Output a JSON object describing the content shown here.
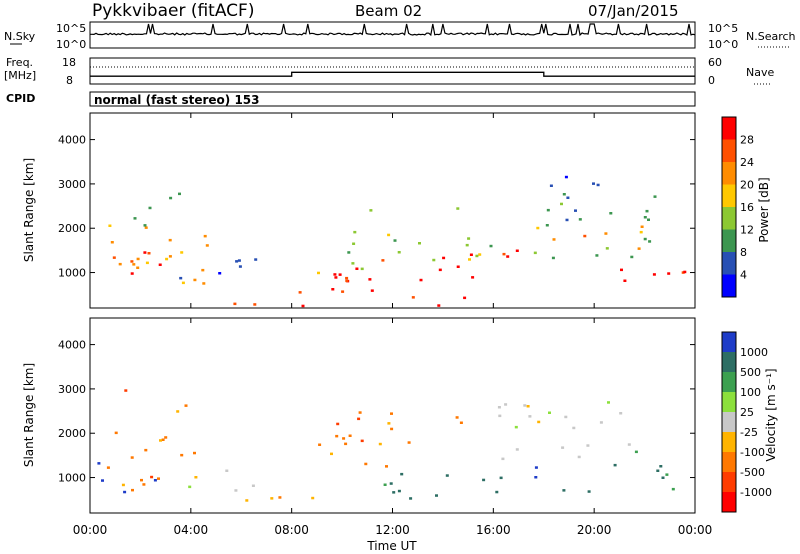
{
  "header": {
    "station": "Pykkvibaer (fitACF)",
    "beam": "Beam 02",
    "date": "07/Jan/2015"
  },
  "panels": {
    "nsky": {
      "left_label": "N.Sky",
      "right_label": "N.Search",
      "left_ticks": [
        "10^5",
        "10^0"
      ],
      "right_ticks": [
        "10^5",
        "10^0"
      ]
    },
    "freq": {
      "left_label_1": "Freq.",
      "left_label_2": "[MHz]",
      "right_label": "Nave",
      "left_ticks": [
        "18",
        "8"
      ],
      "right_ticks": [
        "60",
        "0"
      ],
      "steps": [
        {
          "start_hour": 0,
          "end_hour": 8,
          "nave": 18
        },
        {
          "start_hour": 8,
          "end_hour": 18,
          "nave": 27
        },
        {
          "start_hour": 18,
          "end_hour": 24,
          "nave": 18
        }
      ]
    },
    "cpid": {
      "label": "CPID",
      "text": "normal (fast stereo) 153"
    }
  },
  "chart_data": [
    {
      "type": "heatmap",
      "name": "power",
      "ylabel": "Slant Range [km]",
      "xlabel": "",
      "ylim": [
        200,
        4600
      ],
      "xlim_hours": [
        0,
        24
      ],
      "yticks": [
        "4000",
        "3000",
        "2000",
        "1000"
      ],
      "colorbar": {
        "label": "Power [dB]",
        "ticks": [
          "28",
          "24",
          "20",
          "16",
          "12",
          "8",
          "4"
        ],
        "colors": [
          "#ff0000",
          "#ff5000",
          "#ff8c00",
          "#ffc800",
          "#8cc832",
          "#3c9650",
          "#2850b4",
          "#0000ff"
        ]
      },
      "blobs": [
        {
          "t0": 0.2,
          "t1": 4.8,
          "r0": 700,
          "r1": 2200,
          "c": 2,
          "d": 0.55
        },
        {
          "t0": 0.5,
          "t1": 3.5,
          "r0": 850,
          "r1": 1500,
          "c": 0,
          "d": 0.6
        },
        {
          "t0": 3.5,
          "t1": 6.8,
          "r0": 900,
          "r1": 1400,
          "c": 6,
          "d": 0.7
        },
        {
          "t0": 5.0,
          "t1": 8.0,
          "r0": 300,
          "r1": 500,
          "c": 1,
          "d": 0.6
        },
        {
          "t0": 8.0,
          "t1": 9.0,
          "r0": 200,
          "r1": 650,
          "c": 0,
          "d": 0.7
        },
        {
          "t0": 9.5,
          "t1": 15.5,
          "r0": 250,
          "r1": 1500,
          "c": 0,
          "d": 0.55
        },
        {
          "t0": 9.0,
          "t1": 16.0,
          "r0": 1000,
          "r1": 2600,
          "c": 4,
          "d": 0.35
        },
        {
          "t0": 14.5,
          "t1": 17.0,
          "r0": 1100,
          "r1": 1600,
          "c": 0,
          "d": 0.6
        },
        {
          "t0": 17.5,
          "t1": 22.5,
          "r0": 1300,
          "r1": 2800,
          "c": 5,
          "d": 0.55
        },
        {
          "t0": 17.5,
          "t1": 22.0,
          "r0": 1500,
          "r1": 2200,
          "c": 2,
          "d": 0.45
        },
        {
          "t0": 18.0,
          "t1": 22.0,
          "r0": 2600,
          "r1": 3200,
          "c": 6,
          "d": 0.35
        },
        {
          "t0": 21.0,
          "t1": 24.0,
          "r0": 700,
          "r1": 1400,
          "c": 0,
          "d": 0.6
        },
        {
          "t0": 0.5,
          "t1": 4.0,
          "r0": 2000,
          "r1": 3200,
          "c": 5,
          "d": 0.25
        }
      ]
    },
    {
      "type": "heatmap",
      "name": "velocity",
      "ylabel": "Slant Range [km]",
      "xlabel": "Time UT",
      "ylim": [
        200,
        4600
      ],
      "xlim_hours": [
        0,
        24
      ],
      "yticks": [
        "4000",
        "3000",
        "2000",
        "1000"
      ],
      "xticks": [
        "00:00",
        "04:00",
        "08:00",
        "12:00",
        "16:00",
        "20:00",
        "00:00"
      ],
      "colorbar": {
        "label": "Velocity [m s⁻¹]",
        "ticks": [
          "1000",
          "500",
          "100",
          "25",
          "-25",
          "-100",
          "-500",
          "-1000"
        ],
        "colors": [
          "#1e3cc8",
          "#2d6e64",
          "#3ca050",
          "#8ce03c",
          "#c8c8c8",
          "#ffb400",
          "#ff7800",
          "#ff3c00",
          "#ff0000"
        ]
      },
      "blobs": [
        {
          "t0": 0.2,
          "t1": 4.5,
          "r0": 700,
          "r1": 2200,
          "c": 6,
          "d": 0.45
        },
        {
          "t0": 0.2,
          "t1": 3.0,
          "r0": 700,
          "r1": 1400,
          "c": 0,
          "d": 0.4
        },
        {
          "t0": 3.0,
          "t1": 7.0,
          "r0": 700,
          "r1": 1200,
          "c": 4,
          "d": 0.5
        },
        {
          "t0": 5.0,
          "t1": 9.0,
          "r0": 250,
          "r1": 600,
          "c": 5,
          "d": 0.55
        },
        {
          "t0": 9.5,
          "t1": 12.0,
          "r0": 1200,
          "r1": 2800,
          "c": 6,
          "d": 0.45
        },
        {
          "t0": 11.5,
          "t1": 16.5,
          "r0": 500,
          "r1": 1200,
          "c": 1,
          "d": 0.65
        },
        {
          "t0": 9.0,
          "t1": 15.0,
          "r0": 1500,
          "r1": 2600,
          "c": 6,
          "d": 0.3
        },
        {
          "t0": 16.0,
          "t1": 21.5,
          "r0": 1400,
          "r1": 2800,
          "c": 4,
          "d": 0.55
        },
        {
          "t0": 17.5,
          "t1": 21.0,
          "r0": 700,
          "r1": 1400,
          "c": 1,
          "d": 0.45
        },
        {
          "t0": 21.5,
          "t1": 24.0,
          "r0": 600,
          "r1": 1800,
          "c": 2,
          "d": 0.45
        },
        {
          "t0": 0.5,
          "t1": 4.0,
          "r0": 2000,
          "r1": 3200,
          "c": 6,
          "d": 0.2
        }
      ]
    }
  ]
}
